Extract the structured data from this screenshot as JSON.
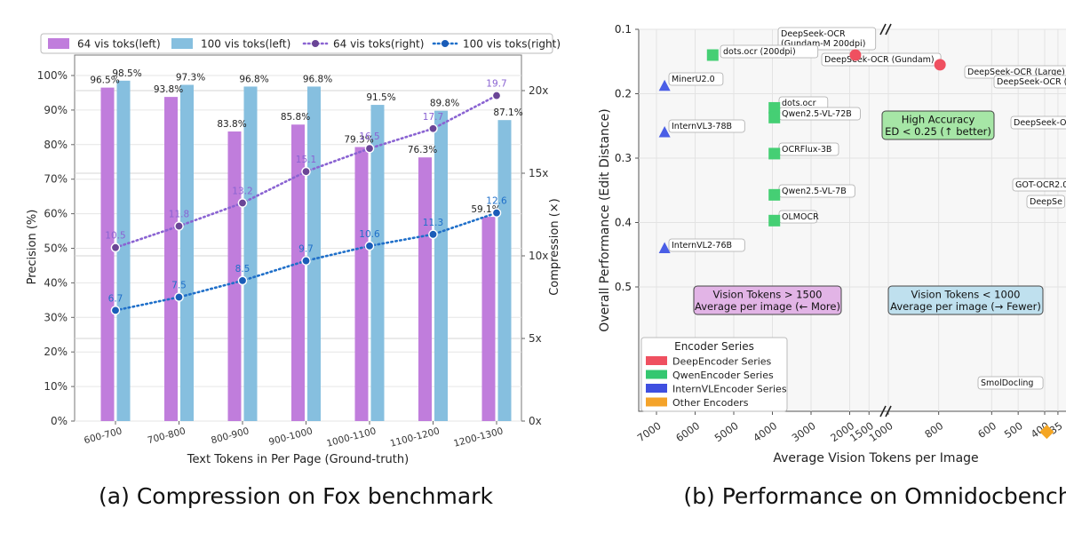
{
  "chart_data": [
    {
      "type": "bar",
      "caption": "(a)  Compression on Fox benchmark",
      "xlabel": "Text Tokens in Per Page (Ground-truth)",
      "ylabel": "Precision (%)",
      "y2label": "Compression (×)",
      "ylim": [
        0,
        100
      ],
      "y2lim": [
        0,
        22.5
      ],
      "grid": true,
      "legend_position": "top",
      "categories": [
        "600-700",
        "700-800",
        "800-900",
        "900-1000",
        "1000-1100",
        "1100-1200",
        "1200-1300"
      ],
      "yticks": [
        "0%",
        "10%",
        "20%",
        "30%",
        "40%",
        "50%",
        "60%",
        "70%",
        "80%",
        "90%",
        "100%"
      ],
      "y2ticks": [
        "0x",
        "5x",
        "10x",
        "15x",
        "20x"
      ],
      "series": [
        {
          "name": "64 vis toks(left)",
          "kind": "bar",
          "axis": "left",
          "color": "#c07ddc",
          "values": [
            96.5,
            93.8,
            83.8,
            85.8,
            79.3,
            76.3,
            59.1
          ],
          "labels": [
            "96.5%",
            "93.8%",
            "83.8%",
            "85.8%",
            "79.3%",
            "76.3%",
            "59.1%"
          ]
        },
        {
          "name": "100 vis toks(left)",
          "kind": "bar",
          "axis": "left",
          "color": "#86bfdf",
          "values": [
            98.5,
            97.3,
            96.8,
            96.8,
            91.5,
            89.8,
            87.1
          ],
          "labels": [
            "98.5%",
            "97.3%",
            "96.8%",
            "96.8%",
            "91.5%",
            "89.8%",
            "87.1%"
          ]
        },
        {
          "name": "64 vis toks(right)",
          "kind": "line",
          "axis": "right",
          "color": "#8a63d2",
          "values": [
            10.5,
            11.8,
            13.2,
            15.1,
            16.5,
            17.7,
            19.7
          ],
          "labels": [
            "10.5",
            "11.8",
            "13.2",
            "15.1",
            "16.5",
            "17.7",
            "19.7"
          ]
        },
        {
          "name": "100 vis toks(right)",
          "kind": "line",
          "axis": "right",
          "color": "#1f6fc9",
          "values": [
            6.7,
            7.5,
            8.5,
            9.7,
            10.6,
            11.3,
            12.6
          ],
          "labels": [
            "6.7",
            "7.5",
            "8.5",
            "9.7",
            "10.6",
            "11.3",
            "12.6"
          ]
        }
      ]
    },
    {
      "type": "scatter",
      "caption": "(b)  Performance on Omnidocbench",
      "xlabel": "Average Vision Tokens per Image",
      "ylabel": "Overall Performance (Edit Distance)",
      "ylim": [
        0.1,
        0.78
      ],
      "y_inverted": true,
      "grid": true,
      "xticks": [
        "7000",
        "6000",
        "5000",
        "4000",
        "3000",
        "2000",
        "1500",
        "1000",
        "800",
        "600",
        "500",
        "400",
        "35"
      ],
      "yticks": [
        "0.1",
        "0.2",
        "0.3",
        "0.4",
        "0.5"
      ],
      "points": [
        {
          "label": "DeepSeek-OCR (Gundam-M 200dpi)",
          "x": 1853,
          "y": 0.14,
          "series": "DeepEncoder Series"
        },
        {
          "label": "DeepSeek-OCR (Gundam)",
          "x": 795,
          "y": 0.155,
          "series": "DeepEncoder Series"
        },
        {
          "label": "DeepSeek-OCR (Large)",
          "x": null,
          "y": 0.165,
          "series": "DeepEncoder Series"
        },
        {
          "label": "DeepSeek-OCR (B",
          "x": null,
          "y": 0.183,
          "series": "DeepEncoder Series"
        },
        {
          "label": "DeepSeek-O",
          "x": null,
          "y": 0.248,
          "series": "DeepEncoder Series"
        },
        {
          "label": "GOT-OCR2.0",
          "x": null,
          "y": 0.343,
          "series": "Other Encoders"
        },
        {
          "label": "DeepSe",
          "x": null,
          "y": 0.368,
          "series": "DeepEncoder Series"
        },
        {
          "label": "dots.ocr (200dpi)",
          "x": 5545,
          "y": 0.14,
          "series": "QwenEncoder Series"
        },
        {
          "label": "dots.ocr",
          "x": 3949,
          "y": 0.222,
          "series": "QwenEncoder Series"
        },
        {
          "label": "Qwen2.5-VL-72B",
          "x": 3949,
          "y": 0.237,
          "series": "QwenEncoder Series"
        },
        {
          "label": "OCRFlux-3B",
          "x": 3949,
          "y": 0.293,
          "series": "QwenEncoder Series"
        },
        {
          "label": "Qwen2.5-VL-7B",
          "x": 3949,
          "y": 0.357,
          "series": "QwenEncoder Series"
        },
        {
          "label": "OLMOCR",
          "x": 3949,
          "y": 0.397,
          "series": "QwenEncoder Series"
        },
        {
          "label": "MinerU2.0",
          "x": 6790,
          "y": 0.188,
          "series": "InternVLEncoder Series"
        },
        {
          "label": "InternVL3-78B",
          "x": 6790,
          "y": 0.26,
          "series": "InternVLEncoder Series"
        },
        {
          "label": "InternVL2-76B",
          "x": 6790,
          "y": 0.44,
          "series": "InternVLEncoder Series"
        },
        {
          "label": "SmolDocling",
          "x": 392,
          "y": 0.725,
          "series": "Other Encoders"
        }
      ],
      "annotations": [
        {
          "lines": [
            "High Accuracy",
            "ED < 0.25 (↑ better)"
          ],
          "color": "#a6e6a6"
        },
        {
          "lines": [
            "Vision Tokens > 1500",
            "Average per image (← More)"
          ],
          "color": "#e2b4e6"
        },
        {
          "lines": [
            "Vision Tokens < 1000",
            "Average per image (→ Fewer)"
          ],
          "color": "#bfe0ee"
        }
      ],
      "legend_title": "Encoder Series",
      "legend": [
        {
          "name": "DeepEncoder Series",
          "color": "#ef5060"
        },
        {
          "name": "QwenEncoder Series",
          "color": "#34c770"
        },
        {
          "name": "InternVLEncoder Series",
          "color": "#3f4fe0"
        },
        {
          "name": "Other Encoders",
          "color": "#f4a32a"
        }
      ],
      "marker_colors": {
        "DeepEncoder Series": "#ef5060",
        "QwenEncoder Series": "#45cf74",
        "InternVLEncoder Series": "#4a5ee6",
        "Other Encoders": "#f5a623"
      }
    }
  ]
}
